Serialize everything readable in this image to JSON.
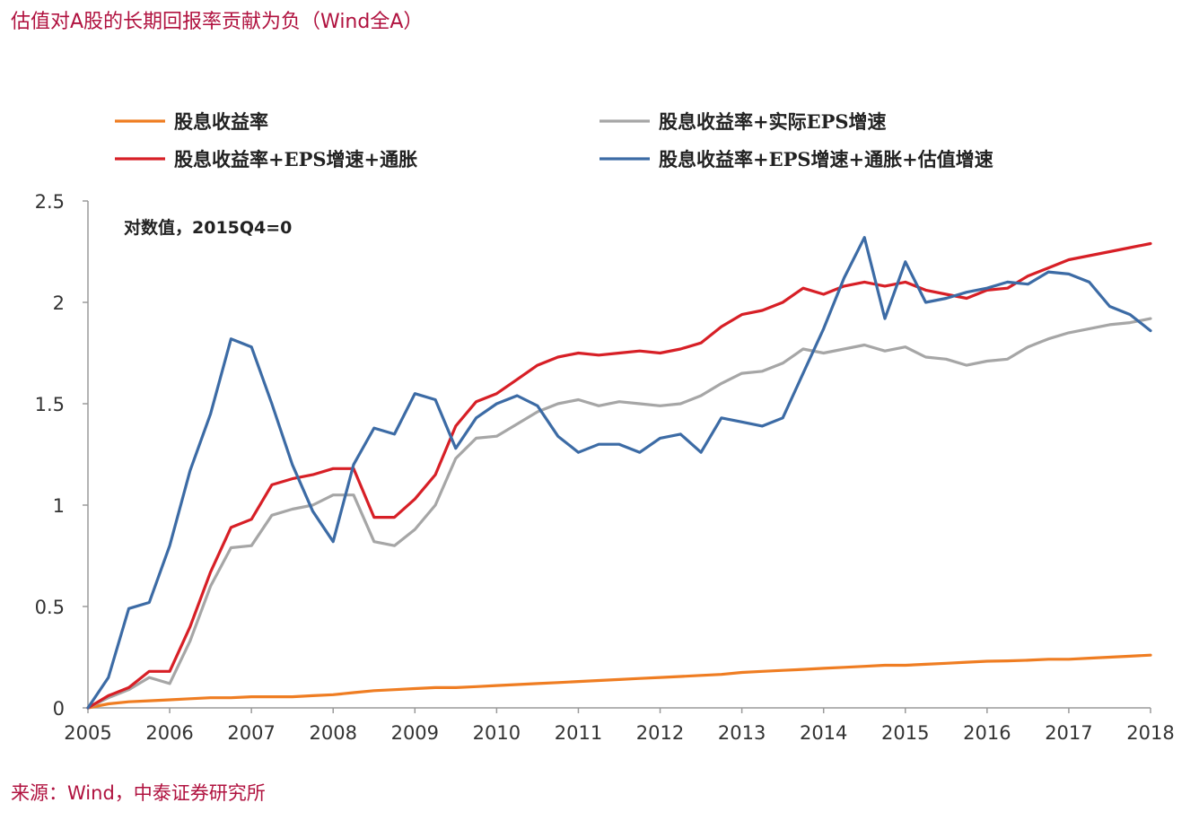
{
  "title": "估值对A股的长期回报率贡献为负（Wind全A）",
  "source": "来源：Wind，中泰证券研究所",
  "chart_data": {
    "type": "line",
    "annotation": "对数值，2015Q4=0",
    "x_ticks": [
      "2005",
      "2006",
      "2007",
      "2008",
      "2009",
      "2010",
      "2011",
      "2012",
      "2013",
      "2014",
      "2015",
      "2016",
      "2017",
      "2018"
    ],
    "xlim": [
      2005,
      2018
    ],
    "ylim": [
      0,
      2.5
    ],
    "y_ticks": [
      "0",
      "0.5",
      "1",
      "1.5",
      "2",
      "2.5"
    ],
    "grid": false,
    "legend_position": "top",
    "series": [
      {
        "name": "股息收益率",
        "color": "#ef7d22",
        "points": [
          [
            2005,
            0
          ],
          [
            2005.25,
            0.02
          ],
          [
            2005.5,
            0.03
          ],
          [
            2005.75,
            0.035
          ],
          [
            2006,
            0.04
          ],
          [
            2006.25,
            0.045
          ],
          [
            2006.5,
            0.05
          ],
          [
            2006.75,
            0.05
          ],
          [
            2007,
            0.055
          ],
          [
            2007.25,
            0.055
          ],
          [
            2007.5,
            0.055
          ],
          [
            2007.75,
            0.06
          ],
          [
            2008,
            0.065
          ],
          [
            2008.25,
            0.075
          ],
          [
            2008.5,
            0.085
          ],
          [
            2008.75,
            0.09
          ],
          [
            2009,
            0.095
          ],
          [
            2009.25,
            0.1
          ],
          [
            2009.5,
            0.1
          ],
          [
            2009.75,
            0.105
          ],
          [
            2010,
            0.11
          ],
          [
            2010.25,
            0.115
          ],
          [
            2010.5,
            0.12
          ],
          [
            2010.75,
            0.125
          ],
          [
            2011,
            0.13
          ],
          [
            2011.25,
            0.135
          ],
          [
            2011.5,
            0.14
          ],
          [
            2011.75,
            0.145
          ],
          [
            2012,
            0.15
          ],
          [
            2012.25,
            0.155
          ],
          [
            2012.5,
            0.16
          ],
          [
            2012.75,
            0.165
          ],
          [
            2013,
            0.175
          ],
          [
            2013.25,
            0.18
          ],
          [
            2013.5,
            0.185
          ],
          [
            2013.75,
            0.19
          ],
          [
            2014,
            0.195
          ],
          [
            2014.25,
            0.2
          ],
          [
            2014.5,
            0.205
          ],
          [
            2014.75,
            0.21
          ],
          [
            2015,
            0.21
          ],
          [
            2015.25,
            0.215
          ],
          [
            2015.5,
            0.22
          ],
          [
            2015.75,
            0.225
          ],
          [
            2016,
            0.23
          ],
          [
            2016.25,
            0.232
          ],
          [
            2016.5,
            0.235
          ],
          [
            2016.75,
            0.24
          ],
          [
            2017,
            0.24
          ],
          [
            2017.25,
            0.245
          ],
          [
            2017.5,
            0.25
          ],
          [
            2017.75,
            0.255
          ],
          [
            2018,
            0.26
          ]
        ]
      },
      {
        "name": "股息收益率+实际EPS增速",
        "color": "#a6a6a6",
        "points": [
          [
            2005,
            0
          ],
          [
            2005.25,
            0.05
          ],
          [
            2005.5,
            0.09
          ],
          [
            2005.75,
            0.15
          ],
          [
            2006,
            0.12
          ],
          [
            2006.25,
            0.33
          ],
          [
            2006.5,
            0.6
          ],
          [
            2006.75,
            0.79
          ],
          [
            2007,
            0.8
          ],
          [
            2007.25,
            0.95
          ],
          [
            2007.5,
            0.98
          ],
          [
            2007.75,
            1.0
          ],
          [
            2008,
            1.05
          ],
          [
            2008.25,
            1.05
          ],
          [
            2008.5,
            0.82
          ],
          [
            2008.75,
            0.8
          ],
          [
            2009,
            0.88
          ],
          [
            2009.25,
            1.0
          ],
          [
            2009.5,
            1.23
          ],
          [
            2009.75,
            1.33
          ],
          [
            2010,
            1.34
          ],
          [
            2010.25,
            1.4
          ],
          [
            2010.5,
            1.46
          ],
          [
            2010.75,
            1.5
          ],
          [
            2011,
            1.52
          ],
          [
            2011.25,
            1.49
          ],
          [
            2011.5,
            1.51
          ],
          [
            2011.75,
            1.5
          ],
          [
            2012,
            1.49
          ],
          [
            2012.25,
            1.5
          ],
          [
            2012.5,
            1.54
          ],
          [
            2012.75,
            1.6
          ],
          [
            2013,
            1.65
          ],
          [
            2013.25,
            1.66
          ],
          [
            2013.5,
            1.7
          ],
          [
            2013.75,
            1.77
          ],
          [
            2014,
            1.75
          ],
          [
            2014.25,
            1.77
          ],
          [
            2014.5,
            1.79
          ],
          [
            2014.75,
            1.76
          ],
          [
            2015,
            1.78
          ],
          [
            2015.25,
            1.73
          ],
          [
            2015.5,
            1.72
          ],
          [
            2015.75,
            1.69
          ],
          [
            2016,
            1.71
          ],
          [
            2016.25,
            1.72
          ],
          [
            2016.5,
            1.78
          ],
          [
            2016.75,
            1.82
          ],
          [
            2017,
            1.85
          ],
          [
            2017.25,
            1.87
          ],
          [
            2017.5,
            1.89
          ],
          [
            2017.75,
            1.9
          ],
          [
            2018,
            1.92
          ]
        ]
      },
      {
        "name": "股息收益率+EPS增速+通胀",
        "color": "#d71f26",
        "points": [
          [
            2005,
            0
          ],
          [
            2005.25,
            0.06
          ],
          [
            2005.5,
            0.1
          ],
          [
            2005.75,
            0.18
          ],
          [
            2006,
            0.18
          ],
          [
            2006.25,
            0.4
          ],
          [
            2006.5,
            0.67
          ],
          [
            2006.75,
            0.89
          ],
          [
            2007,
            0.93
          ],
          [
            2007.25,
            1.1
          ],
          [
            2007.5,
            1.13
          ],
          [
            2007.75,
            1.15
          ],
          [
            2008,
            1.18
          ],
          [
            2008.25,
            1.18
          ],
          [
            2008.5,
            0.94
          ],
          [
            2008.75,
            0.94
          ],
          [
            2009,
            1.03
          ],
          [
            2009.25,
            1.15
          ],
          [
            2009.5,
            1.39
          ],
          [
            2009.75,
            1.51
          ],
          [
            2010,
            1.55
          ],
          [
            2010.25,
            1.62
          ],
          [
            2010.5,
            1.69
          ],
          [
            2010.75,
            1.73
          ],
          [
            2011,
            1.75
          ],
          [
            2011.25,
            1.74
          ],
          [
            2011.5,
            1.75
          ],
          [
            2011.75,
            1.76
          ],
          [
            2012,
            1.75
          ],
          [
            2012.25,
            1.77
          ],
          [
            2012.5,
            1.8
          ],
          [
            2012.75,
            1.88
          ],
          [
            2013,
            1.94
          ],
          [
            2013.25,
            1.96
          ],
          [
            2013.5,
            2.0
          ],
          [
            2013.75,
            2.07
          ],
          [
            2014,
            2.04
          ],
          [
            2014.25,
            2.08
          ],
          [
            2014.5,
            2.1
          ],
          [
            2014.75,
            2.08
          ],
          [
            2015,
            2.1
          ],
          [
            2015.25,
            2.06
          ],
          [
            2015.5,
            2.04
          ],
          [
            2015.75,
            2.02
          ],
          [
            2016,
            2.06
          ],
          [
            2016.25,
            2.07
          ],
          [
            2016.5,
            2.13
          ],
          [
            2016.75,
            2.17
          ],
          [
            2017,
            2.21
          ],
          [
            2017.25,
            2.23
          ],
          [
            2017.5,
            2.25
          ],
          [
            2017.75,
            2.27
          ],
          [
            2018,
            2.29
          ]
        ]
      },
      {
        "name": "股息收益率+EPS增速+通胀+估值增速",
        "color": "#3c6ba5",
        "points": [
          [
            2005,
            0
          ],
          [
            2005.25,
            0.15
          ],
          [
            2005.5,
            0.49
          ],
          [
            2005.75,
            0.52
          ],
          [
            2006,
            0.8
          ],
          [
            2006.25,
            1.17
          ],
          [
            2006.5,
            1.45
          ],
          [
            2006.75,
            1.82
          ],
          [
            2007,
            1.78
          ],
          [
            2007.25,
            1.5
          ],
          [
            2007.5,
            1.2
          ],
          [
            2007.75,
            0.97
          ],
          [
            2008,
            0.82
          ],
          [
            2008.25,
            1.2
          ],
          [
            2008.5,
            1.38
          ],
          [
            2008.75,
            1.35
          ],
          [
            2009,
            1.55
          ],
          [
            2009.25,
            1.52
          ],
          [
            2009.5,
            1.28
          ],
          [
            2009.75,
            1.43
          ],
          [
            2010,
            1.5
          ],
          [
            2010.25,
            1.54
          ],
          [
            2010.5,
            1.49
          ],
          [
            2010.75,
            1.34
          ],
          [
            2011,
            1.26
          ],
          [
            2011.25,
            1.3
          ],
          [
            2011.5,
            1.3
          ],
          [
            2011.75,
            1.26
          ],
          [
            2012,
            1.33
          ],
          [
            2012.25,
            1.35
          ],
          [
            2012.5,
            1.26
          ],
          [
            2012.75,
            1.43
          ],
          [
            2013,
            1.41
          ],
          [
            2013.25,
            1.39
          ],
          [
            2013.5,
            1.43
          ],
          [
            2013.75,
            1.65
          ],
          [
            2014,
            1.87
          ],
          [
            2014.25,
            2.12
          ],
          [
            2014.5,
            2.32
          ],
          [
            2014.75,
            1.92
          ],
          [
            2015,
            2.2
          ],
          [
            2015.25,
            2.0
          ],
          [
            2015.5,
            2.02
          ],
          [
            2015.75,
            2.05
          ],
          [
            2016,
            2.07
          ],
          [
            2016.25,
            2.1
          ],
          [
            2016.5,
            2.09
          ],
          [
            2016.75,
            2.15
          ],
          [
            2017,
            2.14
          ],
          [
            2017.25,
            2.1
          ],
          [
            2017.5,
            1.98
          ],
          [
            2017.75,
            1.94
          ],
          [
            2018,
            1.86
          ]
        ]
      }
    ]
  }
}
